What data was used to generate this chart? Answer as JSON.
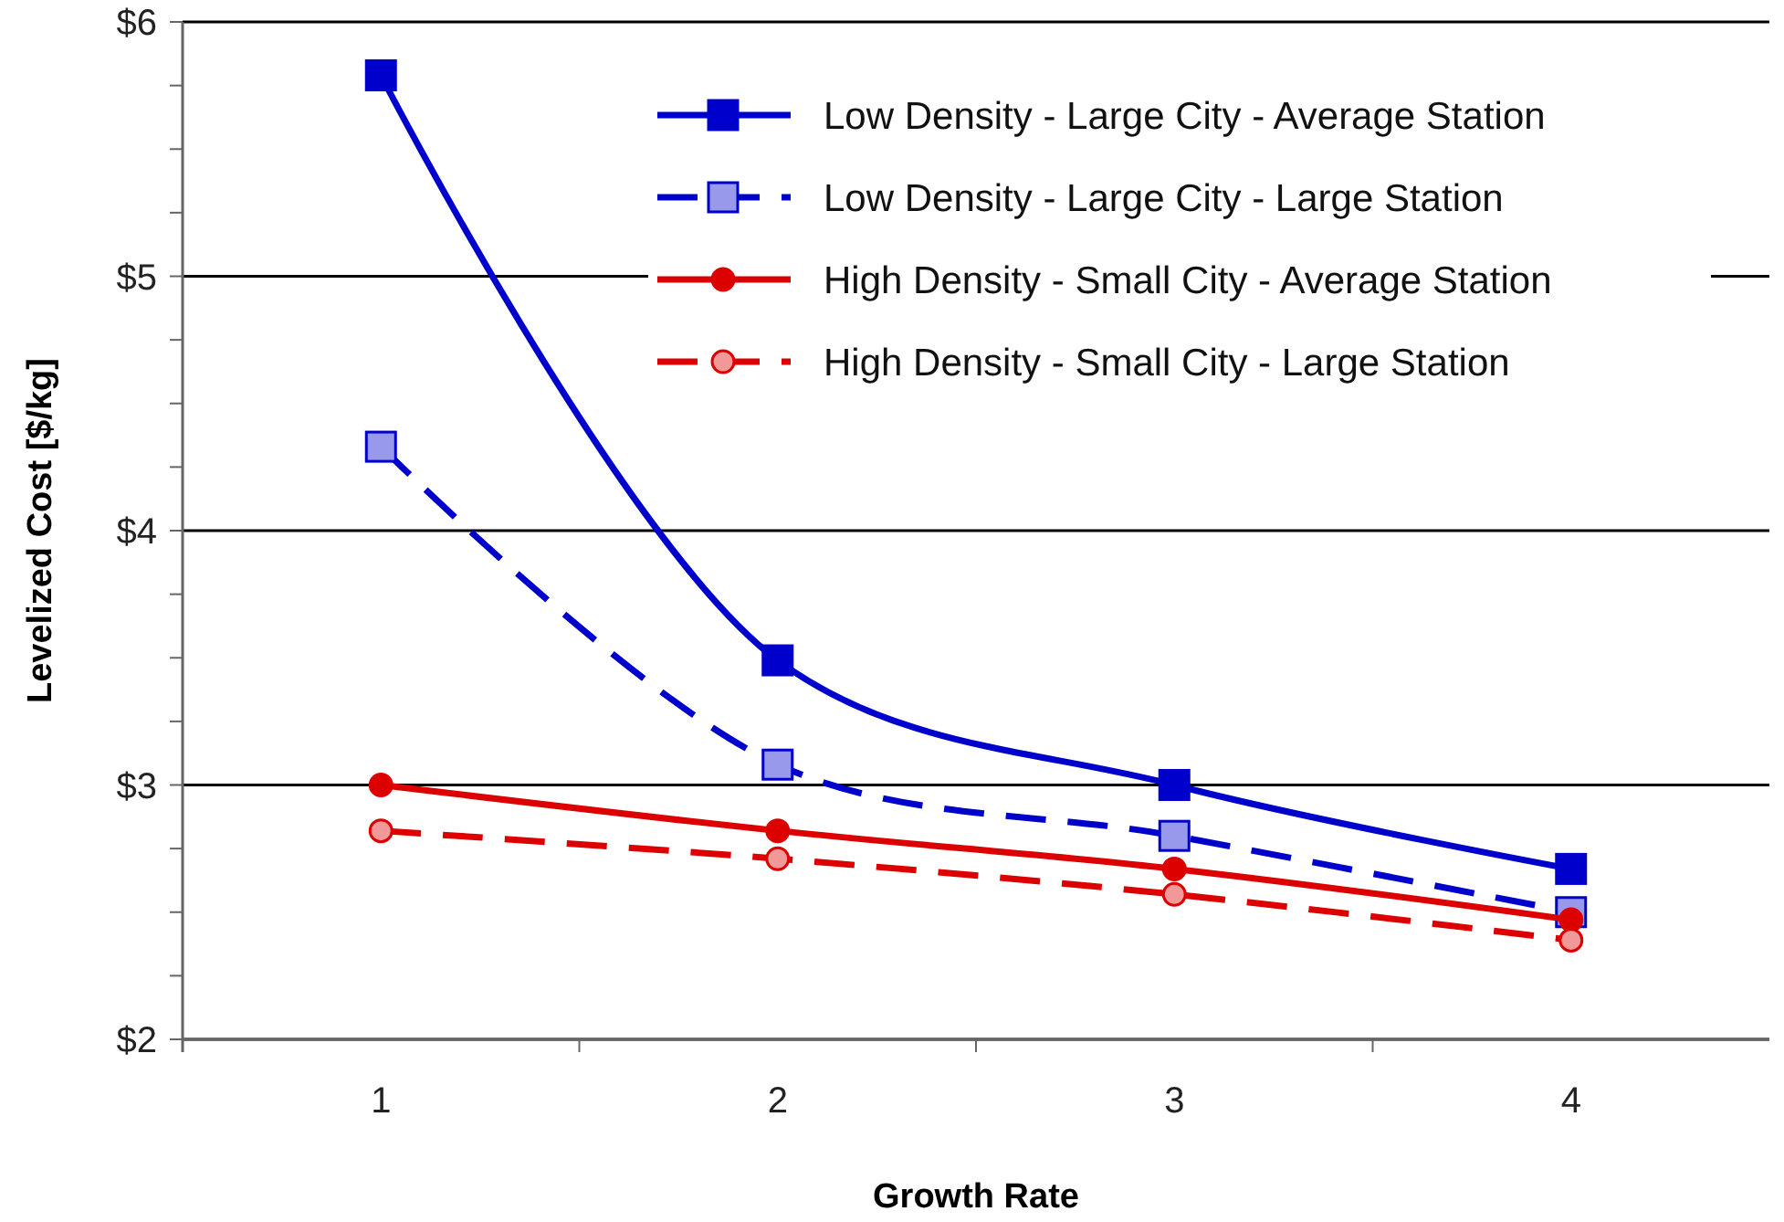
{
  "chart_data": {
    "type": "line",
    "xlabel": "Growth Rate",
    "ylabel": "Levelized Cost [$/kg]",
    "categories": [
      "1",
      "2",
      "3",
      "4"
    ],
    "series": [
      {
        "name": "Low Density - Large City - Average Station",
        "color": "#0000cc",
        "marker": "square",
        "line_style": "solid",
        "values": [
          5.79,
          3.49,
          3.0,
          2.67
        ]
      },
      {
        "name": "Low Density - Large City - Large Station",
        "color": "#0000cc",
        "marker": "square",
        "line_style": "dashed",
        "values": [
          4.33,
          3.08,
          2.8,
          2.5
        ]
      },
      {
        "name": "High Density - Small City - Average Station",
        "color": "#dd0000",
        "marker": "circle",
        "line_style": "solid",
        "values": [
          3.0,
          2.82,
          2.67,
          2.47
        ]
      },
      {
        "name": "High Density - Small City - Large Station",
        "color": "#dd0000",
        "marker": "circle",
        "line_style": "dashed",
        "values": [
          2.82,
          2.71,
          2.57,
          2.39
        ]
      }
    ],
    "ylim": [
      2,
      6
    ],
    "yticks": [
      {
        "value": 2,
        "label": "$2"
      },
      {
        "value": 2.25,
        "label": null
      },
      {
        "value": 2.5,
        "label": null
      },
      {
        "value": 2.75,
        "label": null
      },
      {
        "value": 3,
        "label": "$3"
      },
      {
        "value": 3.25,
        "label": null
      },
      {
        "value": 3.5,
        "label": null
      },
      {
        "value": 3.75,
        "label": null
      },
      {
        "value": 4,
        "label": "$4"
      },
      {
        "value": 4.25,
        "label": null
      },
      {
        "value": 4.5,
        "label": null
      },
      {
        "value": 4.75,
        "label": null
      },
      {
        "value": 5,
        "label": "$5"
      },
      {
        "value": 5.25,
        "label": null
      },
      {
        "value": 5.5,
        "label": null
      },
      {
        "value": 5.75,
        "label": null
      },
      {
        "value": 6,
        "label": "$6"
      }
    ],
    "grid": "y",
    "legend": "top right"
  }
}
